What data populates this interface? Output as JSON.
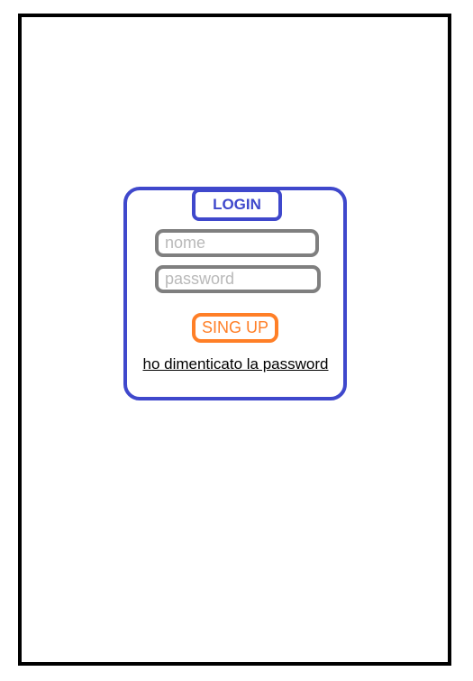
{
  "login_form": {
    "title": "LOGIN",
    "name_placeholder": "nome",
    "password_placeholder": "password",
    "signup_label": "SING UP",
    "forgot_password": "ho dimenticato la password"
  },
  "colors": {
    "frame": "#000000",
    "card_border": "#3f48cc",
    "field_border": "#7f7f7f",
    "placeholder": "#b9b9b9",
    "signup": "#ff7f27"
  }
}
